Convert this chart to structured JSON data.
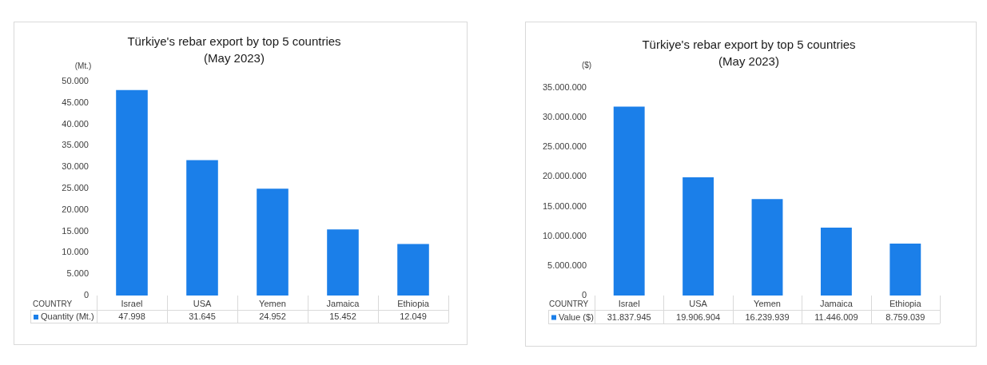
{
  "chart_data": [
    {
      "type": "bar",
      "title": "Türkiye's rebar export by top 5 countries",
      "subtitle": "(May 2023)",
      "ylabel": "(Mt.)",
      "xlabel": "COUNTRY",
      "categories": [
        "Israel",
        "USA",
        "Yemen",
        "Jamaica",
        "Ethiopia"
      ],
      "series": [
        {
          "name": "Quantity (Mt.)",
          "color": "#1b7fe9",
          "values": [
            47998,
            31645,
            24952,
            15452,
            12049
          ],
          "value_labels": [
            "47.998",
            "31.645",
            "24.952",
            "15.452",
            "12.049"
          ]
        }
      ],
      "ylim": [
        0,
        50000
      ],
      "yticks": [
        0,
        {
          "value": 5000,
          "label": "5.000"
        },
        {
          "value": 10000,
          "label": "10.000"
        },
        {
          "value": 15000,
          "label": "15.000"
        },
        {
          "value": 20000,
          "label": "20.000"
        },
        {
          "value": 25000,
          "label": "25.000"
        },
        {
          "value": 30000,
          "label": "30.000"
        },
        {
          "value": 35000,
          "label": "35.000"
        },
        {
          "value": 40000,
          "label": "40.000"
        },
        {
          "value": 45000,
          "label": "45.000"
        },
        {
          "value": 50000,
          "label": "50.000"
        }
      ],
      "legend": "bottom"
    },
    {
      "type": "bar",
      "title": "Türkiye's rebar export by top 5 countries",
      "subtitle": "(May 2023)",
      "ylabel": "($)",
      "xlabel": "COUNTRY",
      "categories": [
        "Israel",
        "USA",
        "Yemen",
        "Jamaica",
        "Ethiopia"
      ],
      "series": [
        {
          "name": "Value ($)",
          "color": "#1b7fe9",
          "values": [
            31837945,
            19906904,
            16239939,
            11446009,
            8759039
          ],
          "value_labels": [
            "31.837.945",
            "19.906.904",
            "16.239.939",
            "11.446.009",
            "8.759.039"
          ]
        }
      ],
      "ylim": [
        0,
        35000000
      ],
      "yticks": [
        0,
        {
          "value": 5000000,
          "label": "5.000.000"
        },
        {
          "value": 10000000,
          "label": "10.000.000"
        },
        {
          "value": 15000000,
          "label": "15.000.000"
        },
        {
          "value": 20000000,
          "label": "20.000.000"
        },
        {
          "value": 25000000,
          "label": "25.000.000"
        },
        {
          "value": 30000000,
          "label": "30.000.000"
        },
        {
          "value": 35000000,
          "label": "35.000.000"
        }
      ],
      "legend": "bottom"
    }
  ]
}
